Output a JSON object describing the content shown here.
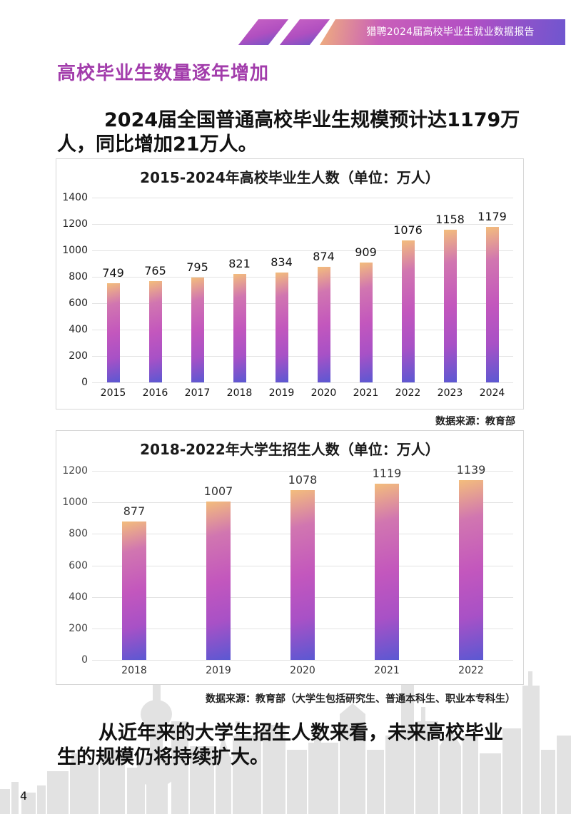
{
  "header": {
    "banner_text": "猎聘2024届高校毕业生就业数据报告",
    "colors": {
      "gradient_start": "#f0b07c",
      "gradient_mid": "#b24fc4",
      "gradient_end": "#6f56cf"
    }
  },
  "section": {
    "heading": "高校毕业生数量逐年增加",
    "heading_color": "#a23cab",
    "intro_text": "2024届全国普通高校毕业生规模预计达1179万人，同比增加21万人。",
    "conclusion_text": "从近年来的大学生招生人数来看，未来高校毕业生的规模仍将持续扩大。"
  },
  "charts": {
    "graduates": {
      "title": "2015-2024年高校毕业生人数（单位：万人）",
      "source": "数据来源：教育部"
    },
    "enrollment": {
      "title": "2018-2022年大学生招生人数（单位：万人）",
      "source": "数据来源：教育部（大学生包括研究生、普通本科生、职业本专科生）"
    }
  },
  "chart_data": [
    {
      "type": "bar",
      "title": "2015-2024年高校毕业生人数（单位：万人）",
      "xlabel": "",
      "ylabel": "万人",
      "categories": [
        "2015",
        "2016",
        "2017",
        "2018",
        "2019",
        "2020",
        "2021",
        "2022",
        "2023",
        "2024"
      ],
      "values": [
        749,
        765,
        795,
        821,
        834,
        874,
        909,
        1076,
        1158,
        1179
      ],
      "yticks": [
        0,
        200,
        400,
        600,
        800,
        1000,
        1200,
        1400
      ],
      "ylim": [
        0,
        1400
      ],
      "grid": true,
      "legend": null,
      "data_labels": true,
      "source": "数据来源：教育部"
    },
    {
      "type": "bar",
      "title": "2018-2022年大学生招生人数（单位：万人）",
      "xlabel": "",
      "ylabel": "万人",
      "categories": [
        "2018",
        "2019",
        "2020",
        "2021",
        "2022"
      ],
      "values": [
        877,
        1007,
        1078,
        1119,
        1139
      ],
      "yticks": [
        0,
        200,
        400,
        600,
        800,
        1000,
        1200
      ],
      "ylim": [
        0,
        1200
      ],
      "grid": true,
      "legend": null,
      "data_labels": true,
      "source": "数据来源：教育部（大学生包括研究生、普通本科生、职业本专科生）"
    }
  ],
  "footer": {
    "page_number": "4"
  }
}
